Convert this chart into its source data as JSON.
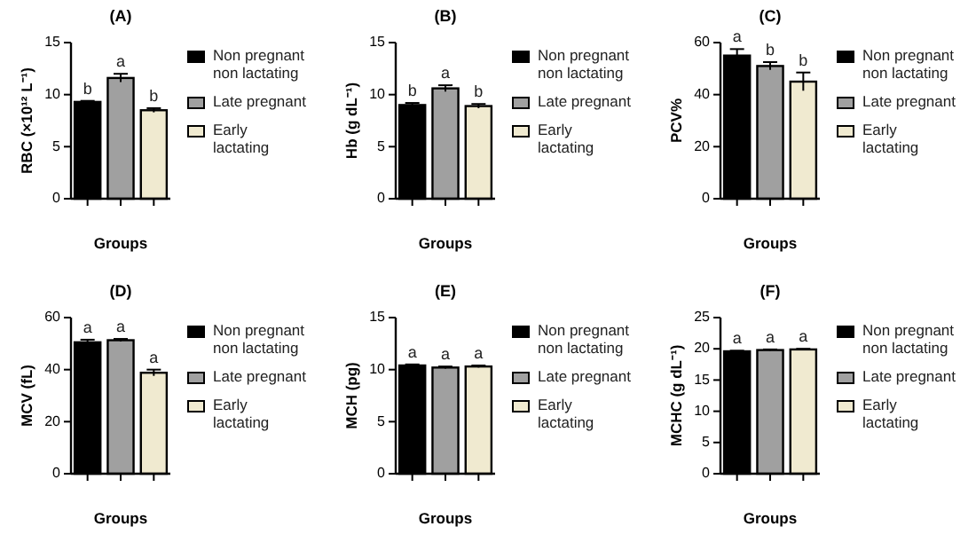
{
  "chart_data": [
    {
      "type": "bar",
      "title": "(A)",
      "xlabel": "Groups",
      "ylabel": "RBC (×10¹² L⁻¹)",
      "categories": [
        null,
        null,
        null
      ],
      "ylim": [
        0,
        15
      ],
      "yticks": [
        0,
        5,
        10,
        15
      ],
      "legend": "right",
      "series": [
        {
          "name": "Non pregnant non lactating",
          "color": "#000000",
          "values": [
            9.3,
            null,
            null
          ],
          "errors": [
            0.1,
            null,
            null
          ]
        },
        {
          "name": "Late pregnant",
          "color": "#a0a0a0",
          "values": [
            null,
            11.6,
            null
          ],
          "errors": [
            null,
            0.4,
            null
          ]
        },
        {
          "name": "Early lactating",
          "color": "#f0ead0",
          "values": [
            null,
            null,
            8.5
          ],
          "errors": [
            null,
            null,
            0.2
          ]
        }
      ],
      "annotations": [
        {
          "text": "b",
          "y": 9.3
        },
        {
          "text": "a",
          "y": 11.6
        },
        {
          "text": "b",
          "y": 8.5
        }
      ]
    },
    {
      "type": "bar",
      "title": "(B)",
      "xlabel": "Groups",
      "ylabel": "Hb (g dL⁻¹)",
      "categories": [
        null,
        null,
        null
      ],
      "ylim": [
        0,
        15
      ],
      "yticks": [
        0,
        5,
        10,
        15
      ],
      "legend": "right",
      "series": [
        {
          "name": "Non pregnant non lactating",
          "color": "#000000",
          "values": [
            9.0,
            null,
            null
          ],
          "errors": [
            0.2,
            null,
            null
          ]
        },
        {
          "name": "Late pregnant",
          "color": "#a0a0a0",
          "values": [
            null,
            10.6,
            null
          ],
          "errors": [
            null,
            0.3,
            null
          ]
        },
        {
          "name": "Early lactating",
          "color": "#f0ead0",
          "values": [
            null,
            null,
            8.9
          ],
          "errors": [
            null,
            null,
            0.2
          ]
        }
      ],
      "annotations": [
        {
          "text": "b",
          "y": 9.0
        },
        {
          "text": "a",
          "y": 10.6
        },
        {
          "text": "b",
          "y": 8.9
        }
      ]
    },
    {
      "type": "bar",
      "title": "(C)",
      "xlabel": "Groups",
      "ylabel": "PCV%",
      "categories": [
        null,
        null,
        null
      ],
      "ylim": [
        0,
        60
      ],
      "yticks": [
        0,
        20,
        40,
        60
      ],
      "legend": "right",
      "series": [
        {
          "name": "Non pregnant non lactating",
          "color": "#000000",
          "values": [
            55,
            null,
            null
          ],
          "errors": [
            2.5,
            null,
            null
          ]
        },
        {
          "name": "Late pregnant",
          "color": "#a0a0a0",
          "values": [
            null,
            51,
            null
          ],
          "errors": [
            null,
            1.5,
            null
          ]
        },
        {
          "name": "Early lactating",
          "color": "#f0ead0",
          "values": [
            null,
            null,
            45
          ],
          "errors": [
            null,
            null,
            3.5
          ]
        }
      ],
      "annotations": [
        {
          "text": "a",
          "y": 55
        },
        {
          "text": "b",
          "y": 51
        },
        {
          "text": "b",
          "y": 45
        }
      ]
    },
    {
      "type": "bar",
      "title": "(D)",
      "xlabel": "Groups",
      "ylabel": "MCV (fL)",
      "categories": [
        null,
        null,
        null
      ],
      "ylim": [
        0,
        60
      ],
      "yticks": [
        0,
        20,
        40,
        60
      ],
      "legend": "right",
      "series": [
        {
          "name": "Non pregnant non lactating",
          "color": "#000000",
          "values": [
            50.5,
            null,
            null
          ],
          "errors": [
            1,
            null,
            null
          ]
        },
        {
          "name": "Late pregnant",
          "color": "#a0a0a0",
          "values": [
            null,
            51.3,
            null
          ],
          "errors": [
            null,
            0.5,
            null
          ]
        },
        {
          "name": "Early lactating",
          "color": "#f0ead0",
          "values": [
            null,
            null,
            38.8
          ],
          "errors": [
            null,
            null,
            1.2
          ]
        }
      ],
      "annotations": [
        {
          "text": "a",
          "y": 50.5
        },
        {
          "text": "a",
          "y": 51.3
        },
        {
          "text": "a",
          "y": 38.8
        }
      ]
    },
    {
      "type": "bar",
      "title": "(E)",
      "xlabel": "Groups",
      "ylabel": "MCH (pg)",
      "categories": [
        null,
        null,
        null
      ],
      "ylim": [
        0,
        15
      ],
      "yticks": [
        0,
        5,
        10,
        15
      ],
      "legend": "right",
      "series": [
        {
          "name": "Non pregnant non lactating",
          "color": "#000000",
          "values": [
            10.4,
            null,
            null
          ],
          "errors": [
            0.1,
            null,
            null
          ]
        },
        {
          "name": "Late pregnant",
          "color": "#a0a0a0",
          "values": [
            null,
            10.2,
            null
          ],
          "errors": [
            null,
            0.1,
            null
          ]
        },
        {
          "name": "Early lactating",
          "color": "#f0ead0",
          "values": [
            null,
            null,
            10.3
          ],
          "errors": [
            null,
            null,
            0.1
          ]
        }
      ],
      "annotations": [
        {
          "text": "a",
          "y": 10.4
        },
        {
          "text": "a",
          "y": 10.2
        },
        {
          "text": "a",
          "y": 10.3
        }
      ]
    },
    {
      "type": "bar",
      "title": "(F)",
      "xlabel": "Groups",
      "ylabel": "MCHC (g dL⁻¹)",
      "categories": [
        null,
        null,
        null
      ],
      "ylim": [
        0,
        25
      ],
      "yticks": [
        0,
        5,
        10,
        15,
        20,
        25
      ],
      "legend": "right",
      "series": [
        {
          "name": "Non pregnant non lactating",
          "color": "#000000",
          "values": [
            19.6,
            null,
            null
          ],
          "errors": [
            0.1,
            null,
            null
          ]
        },
        {
          "name": "Late pregnant",
          "color": "#a0a0a0",
          "values": [
            null,
            19.8,
            null
          ],
          "errors": [
            null,
            0.1,
            null
          ]
        },
        {
          "name": "Early lactating",
          "color": "#f0ead0",
          "values": [
            null,
            null,
            19.9
          ],
          "errors": [
            null,
            null,
            0.1
          ]
        }
      ],
      "annotations": [
        {
          "text": "a",
          "y": 19.6
        },
        {
          "text": "a",
          "y": 19.8
        },
        {
          "text": "a",
          "y": 19.9
        }
      ]
    }
  ]
}
